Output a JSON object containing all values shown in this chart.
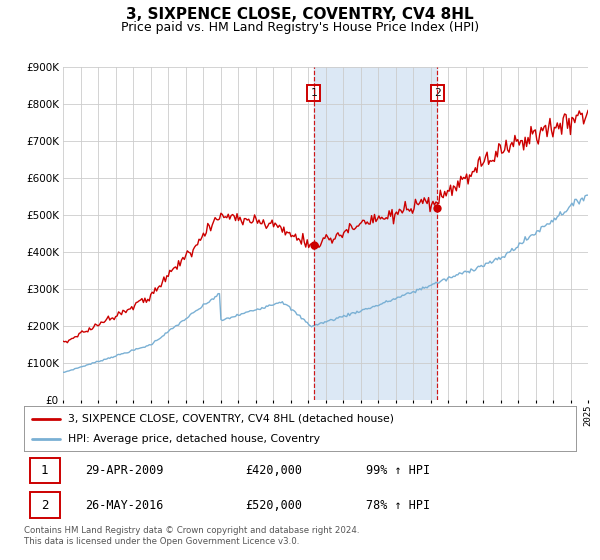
{
  "title": "3, SIXPENCE CLOSE, COVENTRY, CV4 8HL",
  "subtitle": "Price paid vs. HM Land Registry's House Price Index (HPI)",
  "title_fontsize": 11,
  "subtitle_fontsize": 9,
  "red_color": "#cc0000",
  "blue_color": "#7ab0d4",
  "bg_color": "#ffffff",
  "grid_color": "#cccccc",
  "span_color": "#dce8f5",
  "ylim": [
    0,
    900000
  ],
  "yticks": [
    0,
    100000,
    200000,
    300000,
    400000,
    500000,
    600000,
    700000,
    800000,
    900000
  ],
  "marker1_x": 2009.33,
  "marker1_y": 420000,
  "marker2_x": 2016.39,
  "marker2_y": 520000,
  "annotation1_label": "1",
  "annotation2_label": "2",
  "legend_line1": "3, SIXPENCE CLOSE, COVENTRY, CV4 8HL (detached house)",
  "legend_line2": "HPI: Average price, detached house, Coventry",
  "table_row1_num": "1",
  "table_row1_date": "29-APR-2009",
  "table_row1_price": "£420,000",
  "table_row1_pct": "99% ↑ HPI",
  "table_row2_num": "2",
  "table_row2_date": "26-MAY-2016",
  "table_row2_price": "£520,000",
  "table_row2_pct": "78% ↑ HPI",
  "footer": "Contains HM Land Registry data © Crown copyright and database right 2024.\nThis data is licensed under the Open Government Licence v3.0.",
  "xmin": 1995,
  "xmax": 2025
}
